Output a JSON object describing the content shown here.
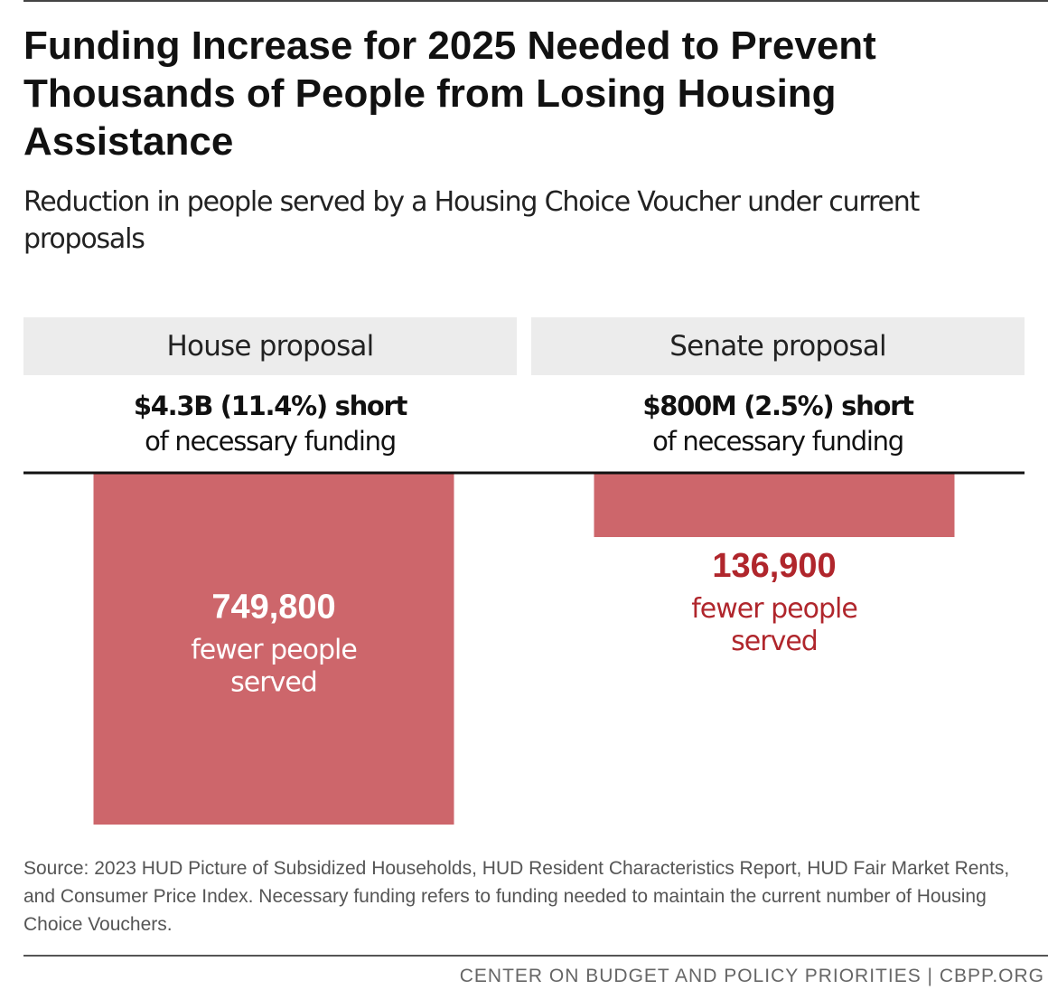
{
  "title": "Funding Increase for 2025 Needed to Prevent Thousands of People from Losing Housing Assistance",
  "subtitle": "Reduction in people served by a Housing Choice Voucher under current proposals",
  "panels": [
    {
      "header": "House proposal",
      "shortfall": "$4.3B (11.4%) short",
      "shortfall_note": "of necessary funding"
    },
    {
      "header": "Senate proposal",
      "shortfall": "$800M (2.5%) short",
      "shortfall_note": "of necessary funding"
    }
  ],
  "chart_data": {
    "type": "bar",
    "title": "Funding Increase for 2025 Needed to Prevent Thousands of People from Losing Housing Assistance",
    "subtitle": "Reduction in people served by a Housing Choice Voucher under current proposals",
    "categories": [
      "House proposal",
      "Senate proposal"
    ],
    "values": [
      749800,
      136900
    ],
    "value_labels": [
      "749,800",
      "136,900"
    ],
    "label_suffix": "fewer people served",
    "label_suffix_lines": [
      "fewer people",
      "served"
    ],
    "orientation": "downward",
    "grid": false,
    "legend": "none"
  },
  "colors": {
    "bar": "#cd666b",
    "bar_label_inside": "#ffffff",
    "bar_label_outside": "#b0262c",
    "baseline": "#111111"
  },
  "source": "Source: 2023 HUD Picture of Subsidized Households, HUD Resident Characteristics Report, HUD Fair Market Rents, and Consumer Price Index. Necessary funding refers to funding needed to maintain the current number of Housing Choice Vouchers.",
  "footer": "CENTER ON BUDGET AND POLICY PRIORITIES | CBPP.ORG"
}
